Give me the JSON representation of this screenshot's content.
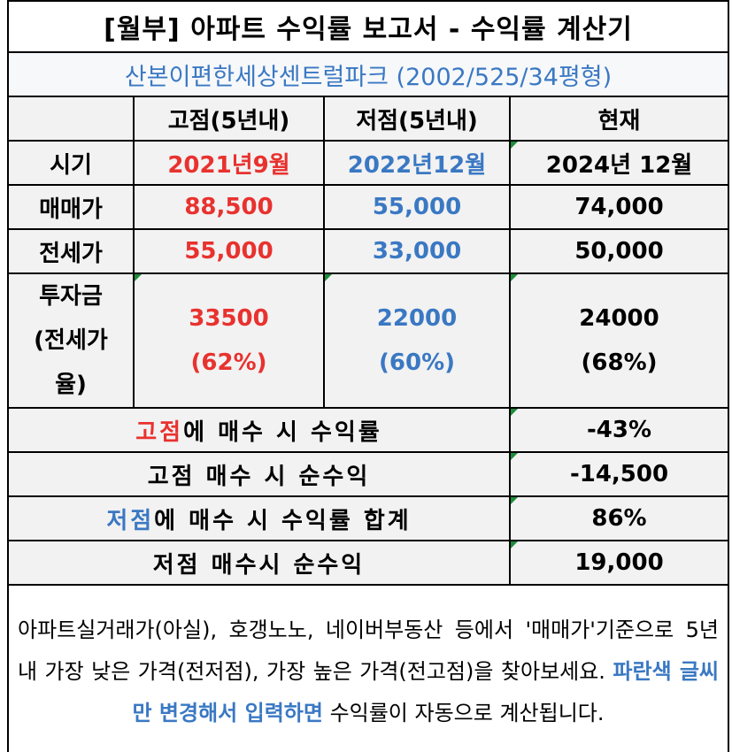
{
  "title": "[월부] 아파트 수익률 보고서 - 수익률 계산기",
  "subtitle": "산본이편한세상센트럴파크 (2002/525/34평형)",
  "header": [
    "고점(5년내)",
    "저점(5년내)",
    "현재"
  ],
  "column_colors": [
    "#e8322f",
    "#3a78c3",
    "#000000"
  ],
  "highlight_colors": {
    "고점": "#e8322f",
    "저점": "#3a78c3"
  },
  "rows": [
    {
      "label": "시기",
      "values": [
        "2021년9월",
        "2022년12월",
        "2024년 12월"
      ]
    },
    {
      "label": "매매가",
      "values": [
        "88,500",
        "55,000",
        "74,000"
      ]
    },
    {
      "label": "전세가",
      "values": [
        "55,000",
        "33,000",
        "50,000"
      ]
    },
    {
      "label": "투자금 (전세가율)",
      "values": [
        "33500",
        "22000",
        "24000"
      ],
      "ratios": [
        "(62%)",
        "(60%)",
        "(68%)"
      ]
    }
  ],
  "results": [
    {
      "highlight": "고점",
      "label": "에 매수 시 수익률",
      "value": "-43%"
    },
    {
      "label": "고점 매수 시 순수익",
      "value": "-14,500"
    },
    {
      "highlight": "저점",
      "label": "에 매수 시 수익률 합계",
      "value": "86%"
    },
    {
      "label": "저점 매수시 순수익",
      "value": "19,000"
    }
  ],
  "note": {
    "before": "아파트실거래가(아실), 호갱노노, 네이버부동산 등에서 '매매가'기준으로 5년 내 가장 낮은 가격(전저점), 가장 높은 가격(전고점)을 찾아보세요. ",
    "emphasis": "파란색 글씨만 변경해서 입력하면",
    "after": " 수익률이 자동으로 계산됩니다."
  }
}
